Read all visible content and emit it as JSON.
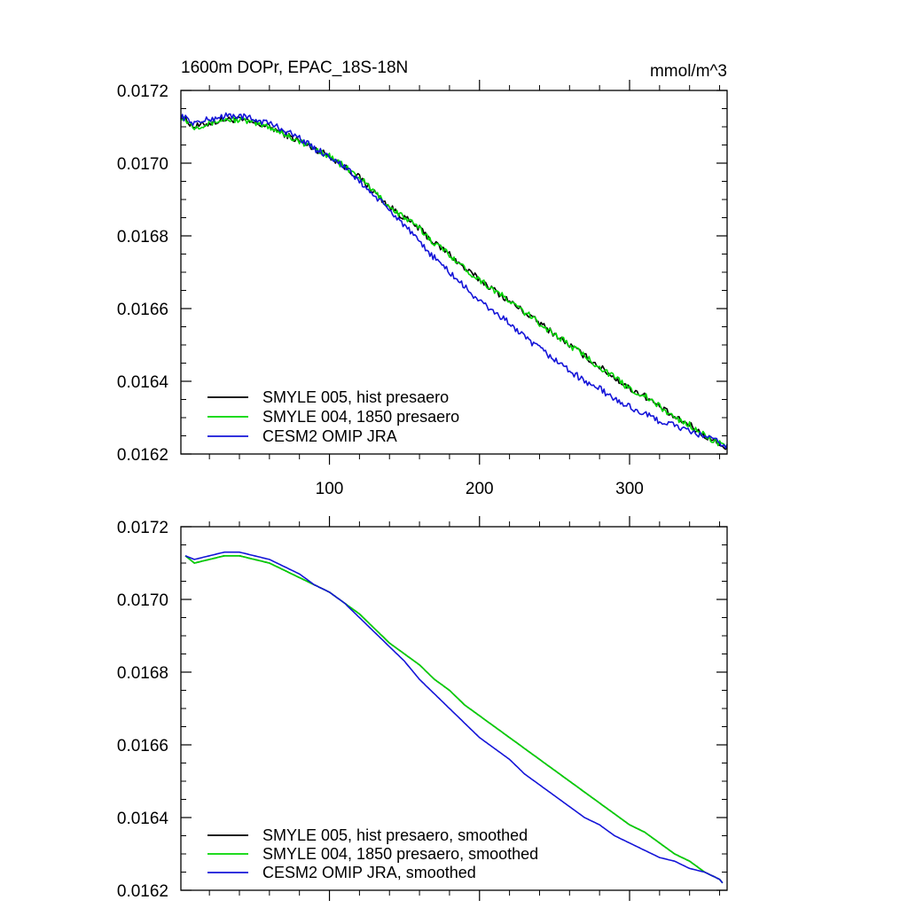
{
  "chart_data": [
    {
      "type": "line",
      "title": "1600m DOPr, EPAC_18S-18N",
      "units_label": "mmol/m^3",
      "xlim": [
        1,
        365
      ],
      "ylim": [
        0.0162,
        0.0172
      ],
      "x_ticks": [
        100,
        200,
        300
      ],
      "x_tick_labels": [
        "100",
        "200",
        "300"
      ],
      "y_ticks": [
        0.0162,
        0.0164,
        0.0166,
        0.0168,
        0.017,
        0.0172
      ],
      "y_tick_labels": [
        "0.0162",
        "0.0164",
        "0.0166",
        "0.0168",
        "0.0170",
        "0.0172"
      ],
      "grid": false,
      "legend_position": "bottom-left",
      "noise": 1.8e-05,
      "series": [
        {
          "name": "SMYLE 005, hist presaero",
          "color": "#000000",
          "x": [
            1,
            10,
            20,
            30,
            40,
            50,
            60,
            70,
            80,
            90,
            100,
            110,
            120,
            130,
            140,
            150,
            160,
            170,
            180,
            190,
            200,
            210,
            220,
            230,
            240,
            250,
            260,
            270,
            280,
            290,
            300,
            310,
            320,
            330,
            340,
            350,
            360,
            365
          ],
          "y": [
            0.01713,
            0.0171,
            0.01711,
            0.01712,
            0.01712,
            0.01711,
            0.0171,
            0.01708,
            0.01706,
            0.01704,
            0.01702,
            0.01699,
            0.01696,
            0.01692,
            0.01688,
            0.01685,
            0.01682,
            0.01678,
            0.01675,
            0.01671,
            0.01668,
            0.01665,
            0.01662,
            0.01659,
            0.01656,
            0.01653,
            0.0165,
            0.01647,
            0.01644,
            0.01641,
            0.01638,
            0.01636,
            0.01633,
            0.0163,
            0.01628,
            0.01625,
            0.01623,
            0.01621
          ]
        },
        {
          "name": "SMYLE 004, 1850 presaero",
          "color": "#00d600",
          "x": [
            1,
            10,
            20,
            30,
            40,
            50,
            60,
            70,
            80,
            90,
            100,
            110,
            120,
            130,
            140,
            150,
            160,
            170,
            180,
            190,
            200,
            210,
            220,
            230,
            240,
            250,
            260,
            270,
            280,
            290,
            300,
            310,
            320,
            330,
            340,
            350,
            360,
            365
          ],
          "y": [
            0.01713,
            0.0171,
            0.01711,
            0.01712,
            0.01712,
            0.01711,
            0.0171,
            0.01708,
            0.01706,
            0.01704,
            0.01702,
            0.01699,
            0.01696,
            0.01692,
            0.01688,
            0.01685,
            0.01682,
            0.01678,
            0.01675,
            0.01671,
            0.01668,
            0.01665,
            0.01662,
            0.01659,
            0.01656,
            0.01653,
            0.0165,
            0.01647,
            0.01644,
            0.01641,
            0.01638,
            0.01636,
            0.01633,
            0.0163,
            0.01628,
            0.01625,
            0.01623,
            0.01621
          ]
        },
        {
          "name": "CESM2 OMIP JRA",
          "color": "#1414d8",
          "x": [
            1,
            10,
            20,
            30,
            40,
            50,
            60,
            70,
            80,
            90,
            100,
            110,
            120,
            130,
            140,
            150,
            160,
            170,
            180,
            190,
            200,
            210,
            220,
            230,
            240,
            250,
            260,
            270,
            280,
            290,
            300,
            310,
            320,
            330,
            340,
            350,
            360,
            365
          ],
          "y": [
            0.01713,
            0.01711,
            0.01712,
            0.01713,
            0.01713,
            0.01712,
            0.01711,
            0.01709,
            0.01707,
            0.01704,
            0.01702,
            0.01699,
            0.01695,
            0.01691,
            0.01687,
            0.01683,
            0.01678,
            0.01674,
            0.0167,
            0.01666,
            0.01662,
            0.01659,
            0.01656,
            0.01652,
            0.01649,
            0.01646,
            0.01643,
            0.0164,
            0.01638,
            0.01635,
            0.01633,
            0.01631,
            0.01629,
            0.01628,
            0.01626,
            0.01625,
            0.01623,
            0.01622
          ]
        }
      ]
    },
    {
      "type": "line",
      "xlim": [
        1,
        365
      ],
      "ylim": [
        0.0162,
        0.0172
      ],
      "x_ticks": [
        100,
        200,
        300
      ],
      "x_tick_labels": [],
      "y_ticks": [
        0.0162,
        0.0164,
        0.0166,
        0.0168,
        0.017,
        0.0172
      ],
      "y_tick_labels": [
        "0.0162",
        "0.0164",
        "0.0166",
        "0.0168",
        "0.0170",
        "0.0172"
      ],
      "grid": false,
      "legend_position": "bottom-left",
      "noise": 0,
      "series": [
        {
          "name": "SMYLE 005, hist presaero, smoothed",
          "color": "#000000",
          "x": [
            4,
            10,
            20,
            30,
            40,
            50,
            60,
            70,
            80,
            90,
            100,
            110,
            120,
            130,
            140,
            150,
            160,
            170,
            180,
            190,
            200,
            210,
            220,
            230,
            240,
            250,
            260,
            270,
            280,
            290,
            300,
            310,
            320,
            330,
            340,
            350,
            360,
            362
          ],
          "y": [
            0.01712,
            0.0171,
            0.01711,
            0.01712,
            0.01712,
            0.01711,
            0.0171,
            0.01708,
            0.01706,
            0.01704,
            0.01702,
            0.01699,
            0.01696,
            0.01692,
            0.01688,
            0.01685,
            0.01682,
            0.01678,
            0.01675,
            0.01671,
            0.01668,
            0.01665,
            0.01662,
            0.01659,
            0.01656,
            0.01653,
            0.0165,
            0.01647,
            0.01644,
            0.01641,
            0.01638,
            0.01636,
            0.01633,
            0.0163,
            0.01628,
            0.01625,
            0.01623,
            0.01622
          ]
        },
        {
          "name": "SMYLE 004, 1850 presaero, smoothed",
          "color": "#00d600",
          "x": [
            4,
            10,
            20,
            30,
            40,
            50,
            60,
            70,
            80,
            90,
            100,
            110,
            120,
            130,
            140,
            150,
            160,
            170,
            180,
            190,
            200,
            210,
            220,
            230,
            240,
            250,
            260,
            270,
            280,
            290,
            300,
            310,
            320,
            330,
            340,
            350,
            360,
            362
          ],
          "y": [
            0.01712,
            0.0171,
            0.01711,
            0.01712,
            0.01712,
            0.01711,
            0.0171,
            0.01708,
            0.01706,
            0.01704,
            0.01702,
            0.01699,
            0.01696,
            0.01692,
            0.01688,
            0.01685,
            0.01682,
            0.01678,
            0.01675,
            0.01671,
            0.01668,
            0.01665,
            0.01662,
            0.01659,
            0.01656,
            0.01653,
            0.0165,
            0.01647,
            0.01644,
            0.01641,
            0.01638,
            0.01636,
            0.01633,
            0.0163,
            0.01628,
            0.01625,
            0.01623,
            0.01622
          ]
        },
        {
          "name": "CESM2 OMIP JRA, smoothed",
          "color": "#1414d8",
          "x": [
            4,
            10,
            20,
            30,
            40,
            50,
            60,
            70,
            80,
            90,
            100,
            110,
            120,
            130,
            140,
            150,
            160,
            170,
            180,
            190,
            200,
            210,
            220,
            230,
            240,
            250,
            260,
            270,
            280,
            290,
            300,
            310,
            320,
            330,
            340,
            350,
            360,
            362
          ],
          "y": [
            0.01712,
            0.01711,
            0.01712,
            0.01713,
            0.01713,
            0.01712,
            0.01711,
            0.01709,
            0.01707,
            0.01704,
            0.01702,
            0.01699,
            0.01695,
            0.01691,
            0.01687,
            0.01683,
            0.01678,
            0.01674,
            0.0167,
            0.01666,
            0.01662,
            0.01659,
            0.01656,
            0.01652,
            0.01649,
            0.01646,
            0.01643,
            0.0164,
            0.01638,
            0.01635,
            0.01633,
            0.01631,
            0.01629,
            0.01628,
            0.01626,
            0.01625,
            0.01623,
            0.01622
          ]
        }
      ]
    }
  ]
}
